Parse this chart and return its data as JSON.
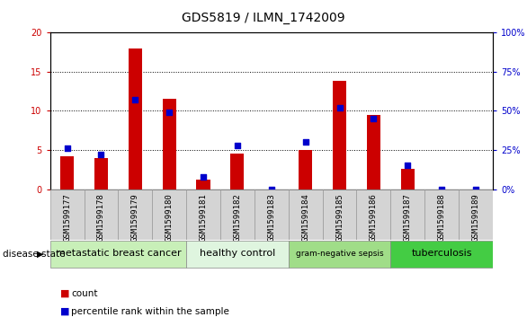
{
  "title": "GDS5819 / ILMN_1742009",
  "samples": [
    "GSM1599177",
    "GSM1599178",
    "GSM1599179",
    "GSM1599180",
    "GSM1599181",
    "GSM1599182",
    "GSM1599183",
    "GSM1599184",
    "GSM1599185",
    "GSM1599186",
    "GSM1599187",
    "GSM1599188",
    "GSM1599189"
  ],
  "counts": [
    4.2,
    4.0,
    18.0,
    11.5,
    1.2,
    4.5,
    0.0,
    5.0,
    13.8,
    9.5,
    2.6,
    0.0,
    0.0
  ],
  "percentile_ranks": [
    26,
    22,
    57,
    49,
    8,
    28,
    0,
    30,
    52,
    45,
    15,
    0,
    0
  ],
  "disease_groups": [
    {
      "label": "metastatic breast cancer",
      "start": 0,
      "end": 3,
      "color": "#c8efb8"
    },
    {
      "label": "healthy control",
      "start": 4,
      "end": 6,
      "color": "#dff5df"
    },
    {
      "label": "gram-negative sepsis",
      "start": 7,
      "end": 9,
      "color": "#a0dd88"
    },
    {
      "label": "tuberculosis",
      "start": 10,
      "end": 12,
      "color": "#44cc44"
    }
  ],
  "ylim_left": [
    0,
    20
  ],
  "ylim_right": [
    0,
    100
  ],
  "yticks_left": [
    0,
    5,
    10,
    15,
    20
  ],
  "yticks_right": [
    0,
    25,
    50,
    75,
    100
  ],
  "bar_color": "#cc0000",
  "dot_color": "#0000cc",
  "bar_width": 0.4,
  "dot_size": 18,
  "grid_color": "#000000",
  "background_color": "#ffffff",
  "tick_bg_color": "#d4d4d4"
}
